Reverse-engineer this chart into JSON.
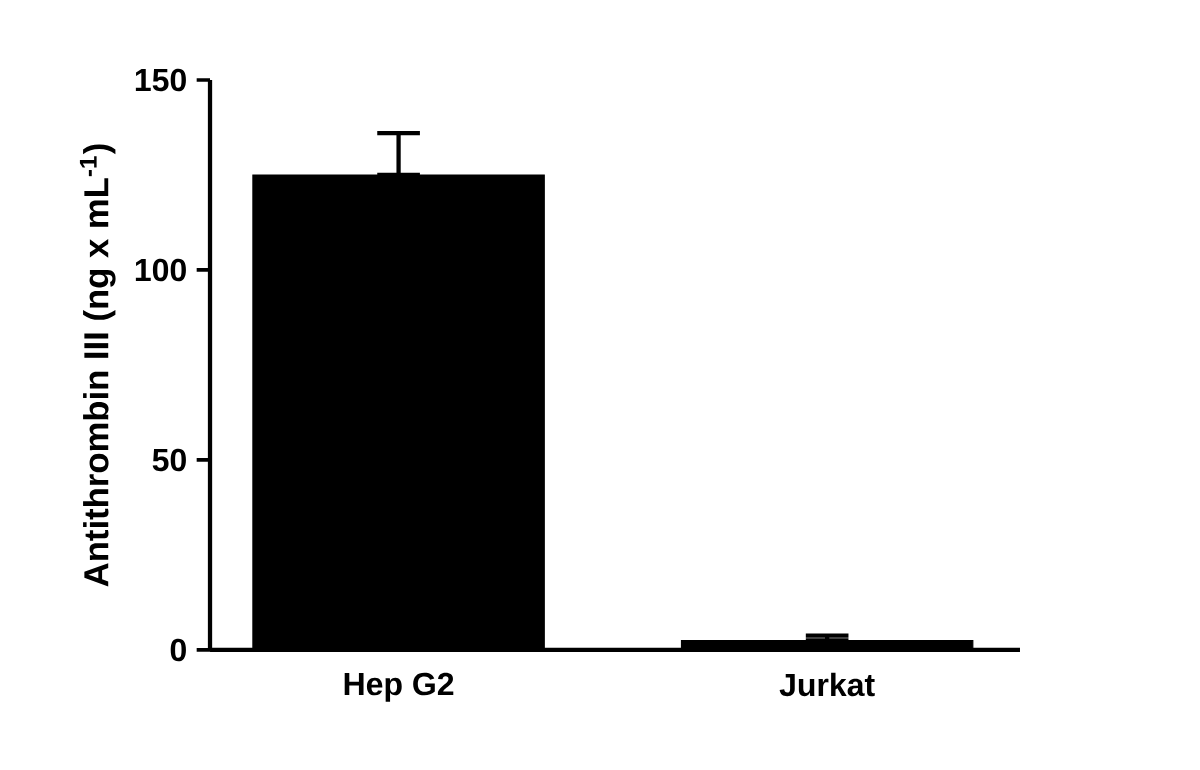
{
  "chart_data": {
    "type": "bar",
    "ylabel": "Antithrombin III (ng x mL$^{-1}$)",
    "categories": [
      "Hep G2",
      "Jurkat"
    ],
    "values": [
      125,
      2.5
    ],
    "errors": [
      [
        125,
        136
      ],
      [
        2.5,
        3.8
      ]
    ],
    "color": "#000000",
    "ylim": [
      0,
      150
    ],
    "yticks": [
      0,
      50,
      100,
      150
    ],
    "grid": false
  }
}
